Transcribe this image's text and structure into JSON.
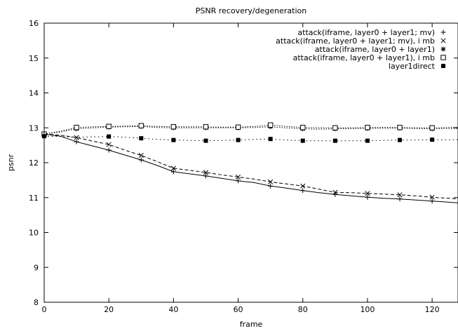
{
  "chart_data": {
    "type": "line",
    "title": "PSNR recovery/degeneration",
    "xlabel": "frame",
    "ylabel": "psnr",
    "xlim": [
      0,
      128
    ],
    "ylim": [
      8,
      16
    ],
    "xticks": [
      0,
      20,
      40,
      60,
      80,
      100,
      120
    ],
    "yticks": [
      8,
      9,
      10,
      11,
      12,
      13,
      14,
      15,
      16
    ],
    "grid": false,
    "legend_position": "top-right",
    "series": [
      {
        "name": "attack(iframe, layer0 + layer1; mv)",
        "marker": "plus",
        "line": "solid",
        "x": [
          0,
          5,
          10,
          15,
          20,
          25,
          30,
          35,
          40,
          45,
          50,
          55,
          60,
          65,
          70,
          75,
          80,
          85,
          90,
          95,
          100,
          105,
          110,
          115,
          120,
          125,
          128
        ],
        "y": [
          12.82,
          12.76,
          12.6,
          12.48,
          12.36,
          12.22,
          12.08,
          11.92,
          11.74,
          11.68,
          11.62,
          11.55,
          11.48,
          11.43,
          11.33,
          11.27,
          11.2,
          11.14,
          11.09,
          11.05,
          11.01,
          10.98,
          10.96,
          10.93,
          10.9,
          10.87,
          10.85
        ],
        "markers_x": [
          0,
          10,
          20,
          30,
          40,
          50,
          60,
          70,
          80,
          90,
          100,
          110,
          120
        ]
      },
      {
        "name": "attack(iframe, layer0 + layer1; mv), i mb",
        "marker": "cross",
        "line": "dashed",
        "x": [
          0,
          5,
          10,
          15,
          20,
          25,
          30,
          35,
          40,
          45,
          50,
          55,
          60,
          65,
          70,
          75,
          80,
          85,
          90,
          95,
          100,
          105,
          110,
          115,
          120,
          125,
          128
        ],
        "y": [
          12.82,
          12.79,
          12.72,
          12.62,
          12.52,
          12.36,
          12.21,
          12.03,
          11.84,
          11.78,
          11.72,
          11.65,
          11.59,
          11.53,
          11.45,
          11.39,
          11.33,
          11.24,
          11.15,
          11.14,
          11.12,
          11.1,
          11.08,
          11.05,
          11.01,
          10.98,
          10.96
        ],
        "markers_x": [
          0,
          10,
          20,
          30,
          40,
          50,
          60,
          70,
          80,
          90,
          100,
          110,
          120
        ]
      },
      {
        "name": "attack(iframe, layer0 + layer1)",
        "marker": "star",
        "line": "dotted",
        "x": [
          0,
          5,
          10,
          15,
          20,
          25,
          30,
          35,
          40,
          45,
          50,
          55,
          60,
          65,
          70,
          75,
          80,
          85,
          90,
          95,
          100,
          105,
          110,
          115,
          120,
          125,
          128
        ],
        "y": [
          12.82,
          12.88,
          12.97,
          13.0,
          13.02,
          13.03,
          13.04,
          13.01,
          13.0,
          13.0,
          13.0,
          13.0,
          13.0,
          13.01,
          13.03,
          13.0,
          12.97,
          12.96,
          12.97,
          12.98,
          12.98,
          12.99,
          12.99,
          12.98,
          12.97,
          12.98,
          12.98
        ],
        "markers_x": [
          0,
          10,
          20,
          30,
          40,
          50,
          60,
          70,
          80,
          90,
          100,
          110,
          120
        ]
      },
      {
        "name": "attack(iframe, layer0 + layer1), i mb",
        "marker": "open-square",
        "line": "dotted",
        "x": [
          0,
          5,
          10,
          15,
          20,
          25,
          30,
          35,
          40,
          45,
          50,
          55,
          60,
          65,
          70,
          75,
          80,
          85,
          90,
          95,
          100,
          105,
          110,
          115,
          120,
          125,
          128
        ],
        "y": [
          12.82,
          12.9,
          13.01,
          13.03,
          13.04,
          13.05,
          13.06,
          13.04,
          13.03,
          13.03,
          13.03,
          13.02,
          13.02,
          13.04,
          13.08,
          13.04,
          13.01,
          13.0,
          13.0,
          13.0,
          13.01,
          13.01,
          13.01,
          13.0,
          13.0,
          13.01,
          13.02
        ],
        "markers_x": [
          0,
          10,
          20,
          30,
          40,
          50,
          60,
          70,
          80,
          90,
          100,
          110,
          120
        ]
      },
      {
        "name": "layer1direct",
        "marker": "filled-square",
        "line": "dotted-sparse",
        "x": [
          0,
          5,
          10,
          15,
          20,
          25,
          30,
          35,
          40,
          45,
          50,
          55,
          60,
          65,
          70,
          75,
          80,
          85,
          90,
          95,
          100,
          105,
          110,
          115,
          120,
          125,
          128
        ],
        "y": [
          12.76,
          12.75,
          12.73,
          12.74,
          12.75,
          12.73,
          12.7,
          12.67,
          12.65,
          12.64,
          12.63,
          12.64,
          12.65,
          12.67,
          12.68,
          12.65,
          12.63,
          12.63,
          12.63,
          12.63,
          12.63,
          12.64,
          12.65,
          12.65,
          12.66,
          12.66,
          12.66
        ],
        "markers_x": [
          0,
          20,
          30,
          40,
          50,
          60,
          70,
          80,
          90,
          100,
          110,
          120
        ]
      }
    ]
  }
}
